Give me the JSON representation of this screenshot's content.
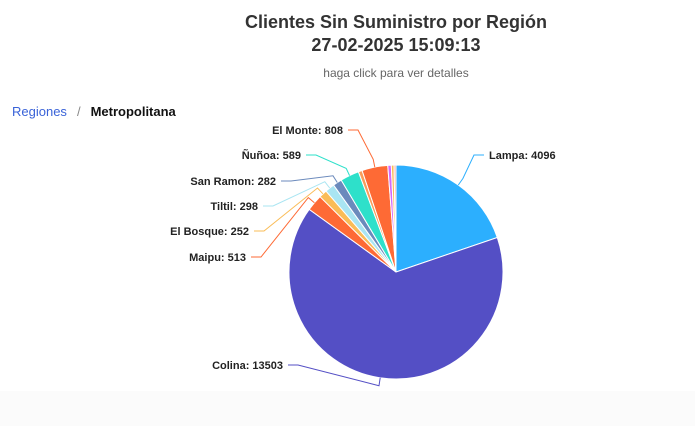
{
  "header": {
    "title_line1": "Clientes Sin Suministro por Región",
    "title_line2": "27-02-2025 15:09:13",
    "subtitle": "haga click para ver detalles"
  },
  "breadcrumb": {
    "root": "Regiones",
    "separator": "/",
    "current": "Metropolitana"
  },
  "chart_data": {
    "type": "pie",
    "title": "Clientes Sin Suministro por Región",
    "subtitle": "haga click para ver detalles",
    "slices": [
      {
        "name": "Lampa",
        "value": 4096,
        "label": "Lampa: 4096",
        "color": "#2caffe"
      },
      {
        "name": "Colina",
        "value": 13503,
        "label": "Colina: 13503",
        "color": "#544fc5"
      },
      {
        "name": "Maipu",
        "value": 513,
        "label": "Maipu: 513",
        "color": "#fe6a35"
      },
      {
        "name": "El Bosque",
        "value": 252,
        "label": "El Bosque: 252",
        "color": "#fabc57"
      },
      {
        "name": "Tiltil",
        "value": 298,
        "label": "Tiltil: 298",
        "color": "#a9e5f2"
      },
      {
        "name": "San Ramon",
        "value": 282,
        "label": "San Ramon: 282",
        "color": "#6b8abc"
      },
      {
        "name": "Ñuñoa",
        "value": 589,
        "label": "Ñuñoa: 589",
        "color": "#2ee0ca"
      },
      {
        "name": "",
        "value": 120,
        "label": "",
        "color": "#fa9c5a"
      },
      {
        "name": "El Monte",
        "value": 808,
        "label": "El Monte: 808",
        "color": "#fe6a35"
      },
      {
        "name": "",
        "value": 110,
        "label": "",
        "color": "#d568fb"
      },
      {
        "name": "",
        "value": 85,
        "label": "",
        "color": "#fabc57"
      },
      {
        "name": "",
        "value": 60,
        "label": "",
        "color": "#f7a3a3"
      }
    ]
  }
}
